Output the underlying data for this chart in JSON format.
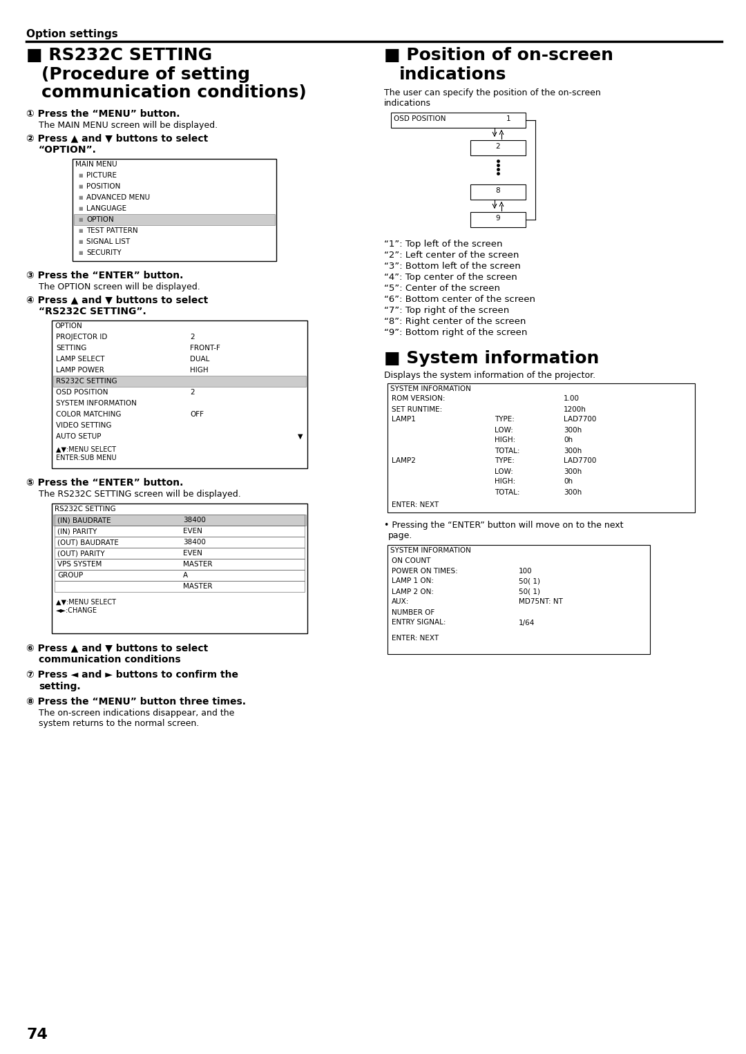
{
  "bg_color": "#ffffff",
  "page_number": "74",
  "header_text": "Option settings",
  "main_menu_items": [
    "PICTURE",
    "POSITION",
    "ADVANCED MENU",
    "LANGUAGE",
    "OPTION",
    "TEST PATTERN",
    "SIGNAL LIST",
    "SECURITY"
  ],
  "main_menu_highlighted": 4,
  "option_menu_title": "OPTION",
  "option_menu_items": [
    [
      "PROJECTOR ID",
      "2"
    ],
    [
      "SETTING",
      "FRONT-F"
    ],
    [
      "LAMP SELECT",
      "DUAL"
    ],
    [
      "LAMP POWER",
      "HIGH"
    ],
    [
      "RS232C SETTING",
      ""
    ],
    [
      "OSD POSITION",
      "2"
    ],
    [
      "SYSTEM INFORMATION",
      ""
    ],
    [
      "COLOR MATCHING",
      "OFF"
    ],
    [
      "VIDEO SETTING",
      ""
    ],
    [
      "AUTO SETUP",
      ""
    ]
  ],
  "option_highlighted": 4,
  "rs232c_menu_items": [
    [
      "(IN) BAUDRATE",
      "38400"
    ],
    [
      "(IN) PARITY",
      "EVEN"
    ],
    [
      "(OUT) BAUDRATE",
      "38400"
    ],
    [
      "(OUT) PARITY",
      "EVEN"
    ],
    [
      "VPS SYSTEM",
      "MASTER"
    ],
    [
      "GROUP",
      "A"
    ],
    [
      "",
      "MASTER"
    ]
  ],
  "osd_desc": [
    "“1”: Top left of the screen",
    "“2”: Left center of the screen",
    "“3”: Bottom left of the screen",
    "“4”: Top center of the screen",
    "“5”: Center of the screen",
    "“6”: Bottom center of the screen",
    "“7”: Top right of the screen",
    "“8”: Right center of the screen",
    "“9”: Bottom right of the screen"
  ],
  "sysinfo1_rows": [
    [
      "ROM VERSION:",
      "",
      "1.00"
    ],
    [
      "SET RUNTIME:",
      "",
      "1200h"
    ],
    [
      "LAMP1",
      "TYPE:",
      "LAD7700"
    ],
    [
      "",
      "LOW:",
      "300h"
    ],
    [
      "",
      "HIGH:",
      "0h"
    ],
    [
      "",
      "TOTAL:",
      "300h"
    ],
    [
      "LAMP2",
      "TYPE:",
      "LAD7700"
    ],
    [
      "",
      "LOW:",
      "300h"
    ],
    [
      "",
      "HIGH:",
      "0h"
    ],
    [
      "",
      "TOTAL:",
      "300h"
    ]
  ],
  "sysinfo2_rows": [
    [
      "POWER ON TIMES:",
      "100"
    ],
    [
      "LAMP 1 ON:",
      "50( 1)"
    ],
    [
      "LAMP 2 ON:",
      "50( 1)"
    ],
    [
      "AUX:",
      "MD75NT: NT"
    ],
    [
      "NUMBER OF",
      ""
    ],
    [
      "ENTRY SIGNAL:",
      "1/64"
    ]
  ]
}
